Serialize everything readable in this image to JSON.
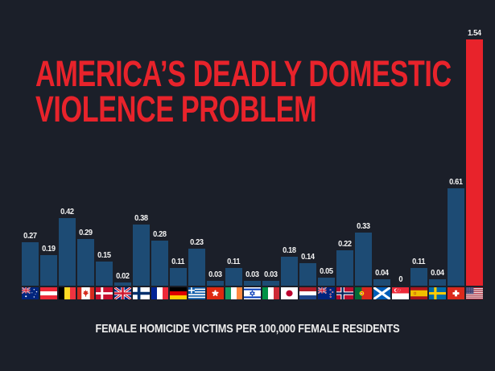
{
  "page": {
    "background_color": "#1b1f29"
  },
  "header": {
    "title_line1": "AMERICA’S DEADLY DOMESTIC",
    "title_line2": "VIOLENCE PROBLEM",
    "title_color": "#e8232b"
  },
  "footer": {
    "caption": "FEMALE HOMICIDE VICTIMS PER 100,000 FEMALE RESIDENTS"
  },
  "chart_data": {
    "type": "bar",
    "title": "America’s Deadly Domestic Violence Problem",
    "xlabel": "",
    "ylabel": "Female homicide victims per 100,000 female residents",
    "ylim": [
      0,
      1.6
    ],
    "grid": false,
    "legend": "none",
    "bar_color_default": "#1d4b74",
    "bar_color_highlight": "#e8232b",
    "highlight_category": "United States",
    "highlight_index": 24,
    "categories": [
      "Australia",
      "Austria",
      "Belgium",
      "Canada",
      "Denmark",
      "United Kingdom",
      "Finland",
      "France",
      "Germany",
      "Greece",
      "Hong Kong",
      "Ireland",
      "Israel",
      "Italy",
      "Japan",
      "Netherlands",
      "New Zealand",
      "Norway",
      "Portugal",
      "Scotland",
      "Singapore",
      "Spain",
      "Sweden",
      "Switzerland",
      "United States"
    ],
    "values": [
      0.27,
      0.19,
      0.42,
      0.29,
      0.15,
      0.02,
      0.38,
      0.28,
      0.11,
      0.23,
      0.03,
      0.11,
      0.03,
      0.03,
      0.18,
      0.14,
      0.05,
      0.22,
      0.33,
      0.04,
      0,
      0.11,
      0.04,
      0.61,
      1.54
    ],
    "labels": [
      "0.27",
      "0.19",
      "0.42",
      "0.29",
      "0.15",
      "0.02",
      "0.38",
      "0.28",
      "0.11",
      "0.23",
      "0.03",
      "0.11",
      "0.03",
      "0.03",
      "0.18",
      "0.14",
      "0.05",
      "0.22",
      "0.33",
      "0.04",
      "0",
      "0.11",
      "0.04",
      "0.61",
      "1.54"
    ],
    "flag_icons": [
      "flag-australia",
      "flag-austria",
      "flag-belgium",
      "flag-canada",
      "flag-denmark",
      "flag-united-kingdom",
      "flag-finland",
      "flag-france",
      "flag-germany",
      "flag-greece",
      "flag-hong-kong",
      "flag-ireland",
      "flag-israel",
      "flag-italy",
      "flag-japan",
      "flag-netherlands",
      "flag-new-zealand",
      "flag-norway",
      "flag-portugal",
      "flag-scotland",
      "flag-singapore",
      "flag-spain",
      "flag-sweden",
      "flag-switzerland",
      "flag-united-states"
    ]
  }
}
